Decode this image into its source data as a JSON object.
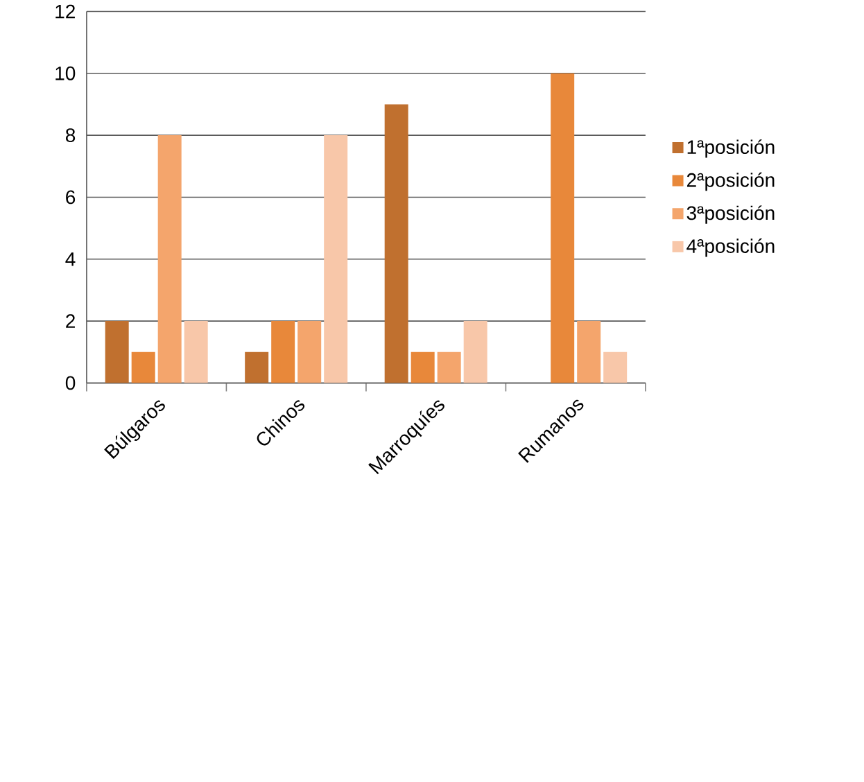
{
  "chart_data": {
    "type": "bar",
    "categories": [
      "Búlgaros",
      "Chinos",
      "Marroquíes",
      "Rumanos"
    ],
    "series": [
      {
        "name": "1ªposición",
        "color": "#c0702f",
        "values": [
          2,
          1,
          9,
          0
        ]
      },
      {
        "name": "2ªposición",
        "color": "#e8883a",
        "values": [
          1,
          2,
          1,
          10
        ]
      },
      {
        "name": "3ªposición",
        "color": "#f4a56c",
        "values": [
          8,
          2,
          1,
          2
        ]
      },
      {
        "name": "4ªposición",
        "color": "#f8c7a9",
        "values": [
          2,
          8,
          2,
          1
        ]
      }
    ],
    "ylim": [
      0,
      12
    ],
    "yticks": [
      0,
      2,
      4,
      6,
      8,
      10,
      12
    ],
    "grid": "y",
    "legend": "right"
  }
}
